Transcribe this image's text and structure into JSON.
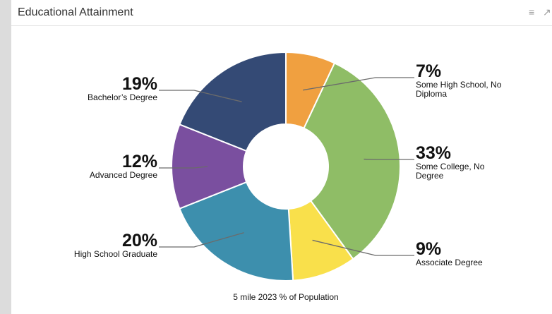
{
  "panel": {
    "title": "Educational Attainment",
    "icons": [
      "list-icon",
      "expand-icon"
    ]
  },
  "chart_data": {
    "type": "pie",
    "donut": true,
    "caption": "5 mile 2023 % of Population",
    "slices": [
      {
        "name": "Some High School, No Diploma",
        "label_lines": [
          "Some High School, No",
          "Diploma"
        ],
        "pct_label": "7%",
        "value": 7,
        "color": "#f0a040"
      },
      {
        "name": "Some College, No Degree",
        "label_lines": [
          "Some College, No",
          "Degree"
        ],
        "pct_label": "33%",
        "value": 33,
        "color": "#8fbd66"
      },
      {
        "name": "Associate Degree",
        "label_lines": [
          "Associate Degree"
        ],
        "pct_label": "9%",
        "value": 9,
        "color": "#f9e04b"
      },
      {
        "name": "High School Graduate",
        "label_lines": [
          "High School Graduate"
        ],
        "pct_label": "20%",
        "value": 20,
        "color": "#3d8fad"
      },
      {
        "name": "Advanced Degree",
        "label_lines": [
          "Advanced Degree"
        ],
        "pct_label": "12%",
        "value": 12,
        "color": "#7a4f9f"
      },
      {
        "name": "Bachelor's Degree",
        "label_lines": [
          "Bachelor’s Degree"
        ],
        "pct_label": "19%",
        "value": 19,
        "color": "#344a75"
      }
    ]
  }
}
